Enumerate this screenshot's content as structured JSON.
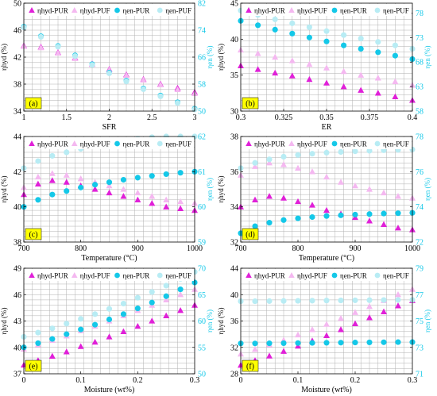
{
  "colors": {
    "pur": "#e020d8",
    "puf": "#f4b8f0",
    "enPur": "#14c8e8",
    "enPuf": "#b8ecf4",
    "leftAxis": "#000000",
    "rightAxis": "#14c8e8",
    "grid": "#b0b0b0",
    "panelTag": "#ffff00"
  },
  "legend_labels": [
    "ηhyd-PUR",
    "ηhyd-PUF",
    "ηen-PUR",
    "ηen-PUF"
  ],
  "chart_data": [
    {
      "type": "scatter",
      "tag": "(a)",
      "xlabel": "SFR",
      "ylabel_left": "ηhyd (%)",
      "ylabel_right": "ηen (%)",
      "xlim": [
        1,
        3
      ],
      "xticks": [
        1,
        1.5,
        2,
        2.5,
        3
      ],
      "xtick_labels": [
        "1",
        "1.5",
        "2",
        "2.5",
        "3"
      ],
      "ylim_left": [
        34,
        50
      ],
      "yticks_left": [
        34,
        38,
        42,
        46,
        50
      ],
      "ylim_right": [
        50,
        82
      ],
      "yticks_right": [
        50,
        58,
        66,
        74,
        82
      ],
      "grid": true,
      "legend": "top",
      "series": [
        {
          "name": "ηhyd-PUR",
          "axis": "left",
          "x": [
            1,
            1.2,
            1.4,
            1.6,
            1.8,
            2,
            2.2,
            2.4,
            2.6,
            2.8,
            3
          ],
          "values": [
            43.7,
            43.5,
            42.7,
            41.9,
            41.0,
            40.2,
            39.4,
            38.7,
            38.0,
            37.4,
            36.8
          ]
        },
        {
          "name": "ηhyd-PUF",
          "axis": "left",
          "x": [
            1,
            1.2,
            1.4,
            1.6,
            1.8,
            2,
            2.2,
            2.4,
            2.6,
            2.8,
            3
          ],
          "values": [
            43.6,
            43.4,
            42.6,
            41.8,
            40.9,
            40.1,
            39.3,
            38.6,
            37.9,
            37.2,
            36.6
          ]
        },
        {
          "name": "ηen-PUR",
          "axis": "right",
          "x": [
            1,
            1.2,
            1.4,
            1.6,
            1.8,
            2,
            2.2,
            2.4,
            2.6,
            2.8,
            3
          ],
          "values": [
            75.0,
            72.2,
            69.3,
            66.5,
            63.9,
            61.4,
            59.0,
            56.7,
            54.6,
            52.6,
            50.7
          ]
        },
        {
          "name": "ηen-PUF",
          "axis": "right",
          "x": [
            1,
            1.2,
            1.4,
            1.6,
            1.8,
            2,
            2.2,
            2.4,
            2.6,
            2.8,
            3
          ],
          "values": [
            74.8,
            72.0,
            69.1,
            66.3,
            63.7,
            61.2,
            58.8,
            56.5,
            54.4,
            52.4,
            50.5
          ]
        }
      ]
    },
    {
      "type": "scatter",
      "tag": "(b)",
      "xlabel": "ER",
      "ylabel_left": "ηhyd (%)",
      "ylabel_right": "ηen (%)",
      "xlim": [
        0.3,
        0.4
      ],
      "xticks": [
        0.3,
        0.325,
        0.35,
        0.375,
        0.4
      ],
      "xtick_labels": [
        "0.3",
        "0.325",
        "0.35",
        "0.375",
        "0.4"
      ],
      "ylim_left": [
        30,
        45
      ],
      "yticks_left": [
        30,
        35,
        40,
        45
      ],
      "ylim_right": [
        58,
        80
      ],
      "yticks_right": [
        58,
        63,
        68,
        73,
        78
      ],
      "grid": true,
      "legend": "top",
      "series": [
        {
          "name": "ηhyd-PUR",
          "axis": "left",
          "x": [
            0.3,
            0.31,
            0.32,
            0.33,
            0.34,
            0.35,
            0.36,
            0.37,
            0.38,
            0.39,
            0.4
          ],
          "values": [
            36.3,
            35.8,
            35.3,
            34.9,
            34.4,
            33.9,
            33.4,
            32.9,
            32.5,
            32.0,
            31.5
          ]
        },
        {
          "name": "ηhyd-PUF",
          "axis": "left",
          "x": [
            0.3,
            0.31,
            0.32,
            0.33,
            0.34,
            0.35,
            0.36,
            0.37,
            0.38,
            0.39,
            0.4
          ],
          "values": [
            38.5,
            38.0,
            37.5,
            37.0,
            36.5,
            36.0,
            35.5,
            35.0,
            34.6,
            34.1,
            33.6
          ]
        },
        {
          "name": "ηen-PUR",
          "axis": "right",
          "x": [
            0.3,
            0.31,
            0.32,
            0.33,
            0.34,
            0.35,
            0.36,
            0.37,
            0.38,
            0.39,
            0.4
          ],
          "values": [
            76.4,
            75.5,
            74.6,
            73.8,
            73.0,
            72.2,
            71.4,
            70.7,
            70.0,
            69.3,
            68.6
          ]
        },
        {
          "name": "ηen-PUF",
          "axis": "right",
          "x": [
            0.3,
            0.31,
            0.32,
            0.33,
            0.34,
            0.35,
            0.36,
            0.37,
            0.38,
            0.39,
            0.4
          ],
          "values": [
            78.5,
            77.6,
            76.7,
            75.9,
            75.1,
            74.3,
            73.5,
            72.8,
            72.1,
            71.4,
            70.7
          ]
        }
      ]
    },
    {
      "type": "scatter",
      "tag": "(c)",
      "xlabel": "Temperature (°C)",
      "ylabel_left": "ηhyd (%)",
      "ylabel_right": "ηen (%)",
      "xlim": [
        700,
        1000
      ],
      "xticks": [
        700,
        800,
        900,
        1000
      ],
      "xtick_labels": [
        "700",
        "800",
        "900",
        "1000"
      ],
      "ylim_left": [
        38,
        44
      ],
      "yticks_left": [
        38,
        40,
        42,
        44
      ],
      "ylim_right": [
        59,
        62
      ],
      "yticks_right": [
        59,
        60,
        61,
        62
      ],
      "grid": true,
      "legend": "top",
      "series": [
        {
          "name": "ηhyd-PUR",
          "axis": "left",
          "x": [
            700,
            725,
            750,
            775,
            800,
            825,
            850,
            875,
            900,
            925,
            950,
            975,
            1000
          ],
          "values": [
            40.7,
            41.3,
            41.5,
            41.4,
            41.2,
            41.0,
            40.8,
            40.6,
            40.4,
            40.2,
            40.0,
            39.9,
            39.8
          ]
        },
        {
          "name": "ηhyd-PUF",
          "axis": "left",
          "x": [
            700,
            725,
            750,
            775,
            800,
            825,
            850,
            875,
            900,
            925,
            950,
            975,
            1000
          ],
          "values": [
            41.1,
            41.7,
            41.9,
            41.8,
            41.6,
            41.4,
            41.2,
            41.0,
            40.8,
            40.6,
            40.4,
            40.3,
            40.2
          ]
        },
        {
          "name": "ηen-PUR",
          "axis": "right",
          "x": [
            700,
            725,
            750,
            775,
            800,
            825,
            850,
            875,
            900,
            925,
            950,
            975,
            1000
          ],
          "values": [
            60.0,
            60.2,
            60.35,
            60.45,
            60.55,
            60.63,
            60.7,
            60.77,
            60.83,
            60.88,
            60.93,
            60.97,
            61.0
          ]
        },
        {
          "name": "ηen-PUF",
          "axis": "right",
          "x": [
            700,
            725,
            750,
            775,
            800,
            825,
            850,
            875,
            900,
            925,
            950,
            975,
            1000
          ],
          "values": [
            61.1,
            61.3,
            61.45,
            61.55,
            61.65,
            61.73,
            61.8,
            61.87,
            61.93,
            61.98,
            62.0,
            62.0,
            62.0
          ]
        }
      ]
    },
    {
      "type": "scatter",
      "tag": "(d)",
      "xlabel": "Temperature (°C)",
      "ylabel_left": "ηhyd (%)",
      "ylabel_right": "ηen (%)",
      "xlim": [
        700,
        1000
      ],
      "xticks": [
        700,
        800,
        900,
        1000
      ],
      "xtick_labels": [
        "700",
        "800",
        "900",
        "1000"
      ],
      "ylim_left": [
        32,
        38
      ],
      "yticks_left": [
        32,
        34,
        36,
        38
      ],
      "ylim_right": [
        72,
        78
      ],
      "yticks_right": [
        72,
        74,
        76,
        78
      ],
      "grid": true,
      "legend": "top",
      "series": [
        {
          "name": "ηhyd-PUR",
          "axis": "left",
          "x": [
            700,
            725,
            750,
            775,
            800,
            825,
            850,
            875,
            900,
            925,
            950,
            975,
            1000
          ],
          "values": [
            34.0,
            34.4,
            34.6,
            34.5,
            34.3,
            34.1,
            33.8,
            33.6,
            33.4,
            33.2,
            33.0,
            32.8,
            32.7
          ]
        },
        {
          "name": "ηhyd-PUF",
          "axis": "left",
          "x": [
            700,
            725,
            750,
            775,
            800,
            825,
            850,
            875,
            900,
            925,
            950,
            975,
            1000
          ],
          "values": [
            35.8,
            36.3,
            36.5,
            36.4,
            36.2,
            36.0,
            35.7,
            35.4,
            35.2,
            35.0,
            34.8,
            34.6,
            34.5
          ]
        },
        {
          "name": "ηen-PUR",
          "axis": "right",
          "x": [
            700,
            725,
            750,
            775,
            800,
            825,
            850,
            875,
            900,
            925,
            950,
            975,
            1000
          ],
          "values": [
            72.5,
            72.9,
            73.1,
            73.25,
            73.35,
            73.42,
            73.48,
            73.52,
            73.56,
            73.59,
            73.62,
            73.64,
            73.66
          ]
        },
        {
          "name": "ηen-PUF",
          "axis": "right",
          "x": [
            700,
            725,
            750,
            775,
            800,
            825,
            850,
            875,
            900,
            925,
            950,
            975,
            1000
          ],
          "values": [
            76.2,
            76.5,
            76.7,
            76.85,
            76.95,
            77.02,
            77.08,
            77.12,
            77.16,
            77.19,
            77.22,
            77.24,
            77.26
          ]
        }
      ]
    },
    {
      "type": "scatter",
      "tag": "(e)",
      "xlabel": "Moisture (wt%)",
      "ylabel_left": "ηhyd (%)",
      "ylabel_right": "ηen (%)",
      "xlim": [
        0,
        0.3
      ],
      "xticks": [
        0,
        0.1,
        0.2,
        0.3
      ],
      "xtick_labels": [
        "0",
        "0.1",
        "0.2",
        "0.3"
      ],
      "ylim_left": [
        37,
        49
      ],
      "yticks_left": [
        37,
        40,
        43,
        46,
        49
      ],
      "ylim_right": [
        50,
        70
      ],
      "yticks_right": [
        50,
        55,
        60,
        65,
        70
      ],
      "grid": true,
      "legend": "top",
      "series": [
        {
          "name": "ηhyd-PUR",
          "axis": "left",
          "x": [
            0,
            0.025,
            0.05,
            0.075,
            0.1,
            0.125,
            0.15,
            0.175,
            0.2,
            0.225,
            0.25,
            0.275,
            0.3
          ],
          "values": [
            38.0,
            38.5,
            39.0,
            39.5,
            40.1,
            40.6,
            41.2,
            41.8,
            42.4,
            43.0,
            43.6,
            44.2,
            44.8
          ]
        },
        {
          "name": "ηhyd-PUF",
          "axis": "left",
          "x": [
            0,
            0.025,
            0.05,
            0.075,
            0.1,
            0.125,
            0.15,
            0.175,
            0.2,
            0.225,
            0.25,
            0.275,
            0.3
          ],
          "values": [
            39.8,
            40.3,
            40.8,
            41.3,
            41.9,
            42.4,
            43.0,
            43.6,
            44.2,
            44.8,
            45.4,
            46.0,
            46.6
          ]
        },
        {
          "name": "ηen-PUR",
          "axis": "right",
          "x": [
            0,
            0.025,
            0.05,
            0.075,
            0.1,
            0.125,
            0.15,
            0.175,
            0.2,
            0.225,
            0.25,
            0.275,
            0.3
          ],
          "values": [
            55.0,
            55.8,
            56.6,
            57.5,
            58.4,
            59.3,
            60.3,
            61.3,
            62.4,
            63.5,
            64.7,
            66.0,
            67.3
          ]
        },
        {
          "name": "ηen-PUF",
          "axis": "right",
          "x": [
            0,
            0.025,
            0.05,
            0.075,
            0.1,
            0.125,
            0.15,
            0.175,
            0.2,
            0.225,
            0.25,
            0.275,
            0.3
          ],
          "values": [
            57.0,
            57.8,
            58.6,
            59.5,
            60.4,
            61.3,
            62.3,
            63.3,
            64.4,
            65.5,
            66.7,
            68.0,
            69.3
          ]
        }
      ]
    },
    {
      "type": "scatter",
      "tag": "(f)",
      "xlabel": "Moisture (wt%)",
      "ylabel_left": "ηhyd (%)",
      "ylabel_right": "ηen (%)",
      "xlim": [
        0,
        0.3
      ],
      "xticks": [
        0,
        0.1,
        0.2,
        0.3
      ],
      "xtick_labels": [
        "0",
        "0.1",
        "0.2",
        "0.3"
      ],
      "ylim_left": [
        28,
        44
      ],
      "yticks_left": [
        28,
        32,
        36,
        40,
        44
      ],
      "ylim_right": [
        71,
        79
      ],
      "yticks_right": [
        71,
        73,
        75,
        77,
        79
      ],
      "grid": true,
      "legend": "top",
      "series": [
        {
          "name": "ηhyd-PUR",
          "axis": "left",
          "x": [
            0,
            0.025,
            0.05,
            0.075,
            0.1,
            0.125,
            0.15,
            0.175,
            0.2,
            0.225,
            0.25,
            0.275,
            0.3
          ],
          "values": [
            29.3,
            30.0,
            30.7,
            31.4,
            32.2,
            33.0,
            33.8,
            34.7,
            35.6,
            36.5,
            37.4,
            38.3,
            39.1
          ]
        },
        {
          "name": "ηhyd-PUF",
          "axis": "left",
          "x": [
            0,
            0.025,
            0.05,
            0.075,
            0.1,
            0.125,
            0.15,
            0.175,
            0.2,
            0.225,
            0.25,
            0.275,
            0.3
          ],
          "values": [
            31.0,
            31.7,
            32.4,
            33.1,
            33.9,
            34.7,
            35.5,
            36.4,
            37.3,
            38.2,
            39.1,
            40.0,
            40.8
          ]
        },
        {
          "name": "ηen-PUR",
          "axis": "right",
          "x": [
            0,
            0.025,
            0.05,
            0.075,
            0.1,
            0.125,
            0.15,
            0.175,
            0.2,
            0.225,
            0.25,
            0.275,
            0.3
          ],
          "values": [
            73.3,
            73.3,
            73.31,
            73.32,
            73.33,
            73.34,
            73.35,
            73.36,
            73.37,
            73.38,
            73.39,
            73.4,
            73.4
          ]
        },
        {
          "name": "ηen-PUF",
          "axis": "right",
          "x": [
            0,
            0.025,
            0.05,
            0.075,
            0.1,
            0.125,
            0.15,
            0.175,
            0.2,
            0.225,
            0.25,
            0.275,
            0.3
          ],
          "values": [
            76.5,
            76.5,
            76.51,
            76.52,
            76.53,
            76.54,
            76.55,
            76.56,
            76.57,
            76.58,
            76.59,
            76.6,
            76.6
          ]
        }
      ]
    }
  ]
}
